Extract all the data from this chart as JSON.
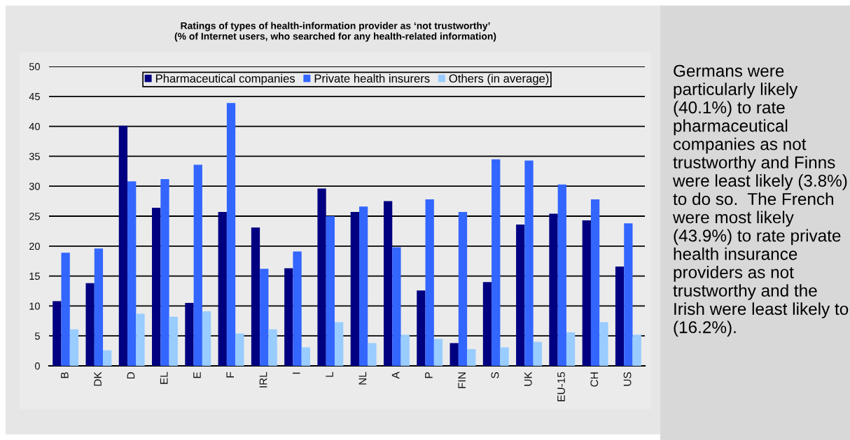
{
  "chart_data": {
    "type": "bar",
    "title": "Ratings of types of health-information provider as ‘not trustworthy’",
    "subtitle": "(% of Internet users, who searched for any health-related information)",
    "categories": [
      "B",
      "DK",
      "D",
      "EL",
      "E",
      "F",
      "IRL",
      "I",
      "L",
      "NL",
      "A",
      "P",
      "FIN",
      "S",
      "UK",
      "EU-15",
      "CH",
      "US"
    ],
    "series": [
      {
        "name": "Pharmaceutical companies",
        "color": "#000080",
        "values": [
          10.8,
          13.8,
          40.1,
          26.4,
          10.5,
          25.7,
          23.1,
          16.3,
          29.6,
          25.7,
          27.5,
          12.6,
          3.8,
          14.0,
          23.6,
          25.4,
          24.3,
          16.6
        ]
      },
      {
        "name": "Private health insurers",
        "color": "#3366ff",
        "values": [
          18.9,
          19.6,
          30.8,
          31.2,
          33.6,
          43.9,
          16.2,
          19.1,
          25.0,
          26.6,
          19.8,
          27.8,
          25.7,
          34.5,
          34.3,
          30.3,
          27.8,
          23.8
        ]
      },
      {
        "name": "Others (in average)",
        "color": "#99ccff",
        "values": [
          6.1,
          2.6,
          8.7,
          8.2,
          9.1,
          5.4,
          6.1,
          3.1,
          7.3,
          3.8,
          5.2,
          4.5,
          2.8,
          3.1,
          4.0,
          5.6,
          7.3,
          5.2
        ]
      }
    ],
    "ylim": [
      0,
      50
    ],
    "yticks": [
      0,
      5,
      10,
      15,
      20,
      25,
      30,
      35,
      40,
      45,
      50
    ],
    "grid": "y",
    "legend": "top",
    "annotations": [
      "Germans were particularly likely (40.1%) to rate pharmaceutical companies as not trustworthy and Finns were least likely (3.8%) to do so.  The French were most likely (43.9%) to rate private health insurance providers as not trustworthy and the Irish were least likely to (16.2%)."
    ]
  }
}
